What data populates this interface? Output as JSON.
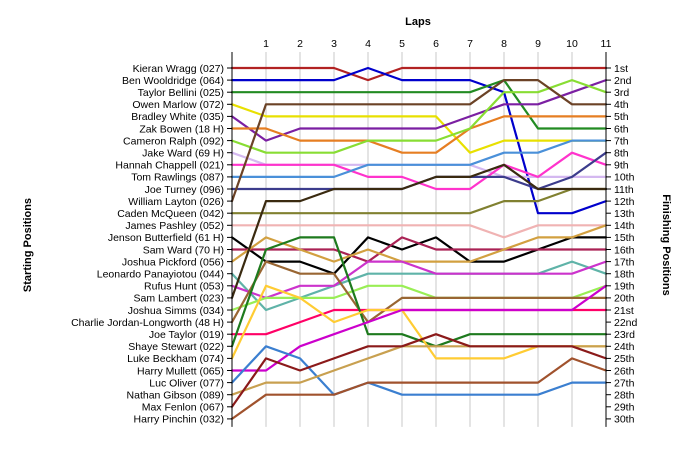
{
  "chart_data": {
    "type": "line",
    "title": "",
    "xlabel": "Laps",
    "ylabel_left": "Starting Positions",
    "ylabel_right": "Finishing Positions",
    "x": [
      1,
      2,
      3,
      4,
      5,
      6,
      7,
      8,
      9,
      10,
      11
    ],
    "start_labels": [
      "Kieran Wragg (027)",
      "Ben Wooldridge (064)",
      "Taylor Bellini (025)",
      "Owen Marlow (072)",
      "Bradley White (035)",
      "Zak Bowen (18 H)",
      "Cameron Ralph (092)",
      "Jake Ward (69 H)",
      "Hannah Chappell (021)",
      "Tom Rawlings (087)",
      "Joe Turney (096)",
      "William Layton (026)",
      "Caden McQueen (042)",
      "James Pashley (052)",
      "Jenson Butterfield (61 H)",
      "Sam Ward (70 H)",
      "Joshua Pickford (056)",
      "Leonardo Panayiotou (044)",
      "Rufus Hunt (053)",
      "Sam Lambert (023)",
      "Joshua Simms (034)",
      "Charlie Jordan-Longworth (48 H)",
      "Joe Taylor (019)",
      "Shaye Stewart (022)",
      "Luke Beckham (074)",
      "Harry Mullett (065)",
      "Luc Oliver (077)",
      "Nathan Gibson (089)",
      "Max Fenlon (067)",
      "Harry Pinchin (032)"
    ],
    "finish_labels": [
      "1st",
      "2nd",
      "3rd",
      "4th",
      "5th",
      "6th",
      "7th",
      "8th",
      "9th",
      "10th",
      "11th",
      "12th",
      "13th",
      "14th",
      "15th",
      "16th",
      "17th",
      "18th",
      "19th",
      "20th",
      "21st",
      "22nd",
      "23rd",
      "24th",
      "25th",
      "26th",
      "27th",
      "28th",
      "29th",
      "30th"
    ],
    "series": [
      {
        "color": "#b22222",
        "positions": [
          1,
          1,
          1,
          1,
          2,
          1,
          1,
          1,
          1,
          1,
          1,
          1
        ]
      },
      {
        "color": "#0000cc",
        "positions": [
          2,
          2,
          2,
          2,
          1,
          2,
          2,
          2,
          3,
          13,
          13,
          12
        ]
      },
      {
        "color": "#228b22",
        "positions": [
          3,
          3,
          3,
          3,
          3,
          3,
          3,
          3,
          2,
          6,
          6,
          6
        ]
      },
      {
        "color": "#e8e000",
        "positions": [
          4,
          5,
          5,
          5,
          5,
          5,
          5,
          8,
          7,
          7,
          7,
          7
        ]
      },
      {
        "color": "#7b1fa2",
        "positions": [
          5,
          7,
          6,
          6,
          6,
          6,
          6,
          5,
          4,
          4,
          3,
          2
        ]
      },
      {
        "color": "#e67e22",
        "positions": [
          6,
          6,
          7,
          7,
          7,
          8,
          8,
          6,
          5,
          5,
          5,
          5
        ]
      },
      {
        "color": "#88dd33",
        "positions": [
          7,
          8,
          8,
          8,
          7,
          7,
          7,
          6,
          3,
          3,
          2,
          3
        ]
      },
      {
        "color": "#d4b8f0",
        "positions": [
          8,
          9,
          9,
          9,
          9,
          9,
          9,
          9,
          10,
          10,
          10,
          10
        ]
      },
      {
        "color": "#ff33cc",
        "positions": [
          9,
          9,
          9,
          9,
          10,
          10,
          11,
          11,
          9,
          10,
          8,
          9
        ]
      },
      {
        "color": "#4a90d9",
        "positions": [
          10,
          10,
          10,
          10,
          9,
          9,
          9,
          9,
          8,
          8,
          7,
          7
        ]
      },
      {
        "color": "#3c3c8c",
        "positions": [
          11,
          11,
          11,
          11,
          11,
          11,
          10,
          10,
          10,
          11,
          10,
          8
        ]
      },
      {
        "color": "#6b4226",
        "positions": [
          12,
          4,
          4,
          4,
          4,
          4,
          4,
          4,
          2,
          2,
          4,
          4
        ]
      },
      {
        "color": "#808030",
        "positions": [
          13,
          13,
          13,
          13,
          13,
          13,
          13,
          13,
          12,
          12,
          11,
          11
        ]
      },
      {
        "color": "#f0b3b3",
        "positions": [
          14,
          14,
          14,
          14,
          14,
          14,
          14,
          14,
          15,
          14,
          14,
          14
        ]
      },
      {
        "color": "#000000",
        "positions": [
          15,
          17,
          17,
          18,
          15,
          16,
          15,
          17,
          17,
          16,
          15,
          15
        ]
      },
      {
        "color": "#aa2255",
        "positions": [
          16,
          16,
          16,
          16,
          17,
          15,
          16,
          16,
          16,
          16,
          16,
          16
        ]
      },
      {
        "color": "#d2a040",
        "positions": [
          17,
          15,
          16,
          17,
          16,
          17,
          17,
          17,
          16,
          15,
          15,
          14
        ]
      },
      {
        "color": "#5fb3a8",
        "positions": [
          18,
          21,
          20,
          19,
          18,
          18,
          18,
          18,
          18,
          18,
          17,
          18
        ]
      },
      {
        "color": "#cc33cc",
        "positions": [
          19,
          20,
          19,
          19,
          17,
          17,
          18,
          18,
          18,
          18,
          18,
          17
        ]
      },
      {
        "color": "#3a2a10",
        "positions": [
          20,
          12,
          12,
          11,
          11,
          11,
          10,
          10,
          9,
          11,
          11,
          11
        ]
      },
      {
        "color": "#99ee55",
        "positions": [
          21,
          20,
          20,
          20,
          19,
          19,
          20,
          20,
          20,
          20,
          20,
          19
        ]
      },
      {
        "color": "#996633",
        "positions": [
          22,
          17,
          18,
          18,
          22,
          20,
          20,
          20,
          20,
          20,
          20,
          20
        ]
      },
      {
        "color": "#ff0066",
        "positions": [
          23,
          23,
          22,
          21,
          21,
          21,
          21,
          21,
          21,
          21,
          21,
          21
        ]
      },
      {
        "color": "#1e7a1e",
        "positions": [
          24,
          16,
          15,
          15,
          23,
          23,
          24,
          23,
          23,
          23,
          23,
          23
        ]
      },
      {
        "color": "#ffcc33",
        "positions": [
          25,
          19,
          20,
          22,
          21,
          21,
          25,
          25,
          25,
          24,
          24,
          24
        ]
      },
      {
        "color": "#cc00cc",
        "positions": [
          26,
          26,
          24,
          23,
          22,
          21,
          21,
          21,
          21,
          21,
          21,
          19
        ]
      },
      {
        "color": "#3b7fd0",
        "positions": [
          27,
          24,
          25,
          28,
          27,
          28,
          28,
          28,
          28,
          28,
          27,
          27
        ]
      },
      {
        "color": "#c8a050",
        "positions": [
          28,
          27,
          27,
          26,
          25,
          24,
          24,
          24,
          24,
          24,
          24,
          24
        ]
      },
      {
        "color": "#8b1a1a",
        "positions": [
          29,
          25,
          26,
          25,
          24,
          24,
          23,
          24,
          24,
          24,
          24,
          25
        ]
      },
      {
        "color": "#a0522d",
        "positions": [
          30,
          28,
          28,
          28,
          27,
          27,
          27,
          27,
          27,
          27,
          25,
          26
        ]
      }
    ]
  }
}
